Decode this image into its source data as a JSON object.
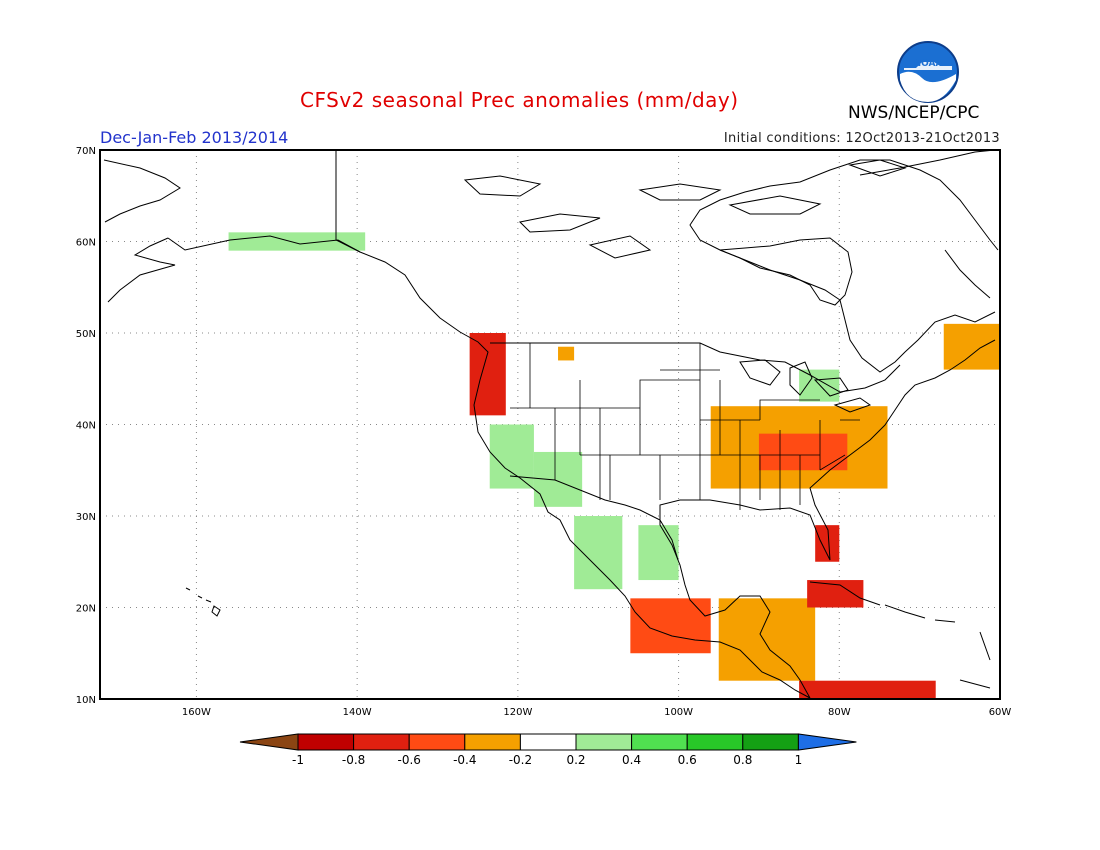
{
  "header": {
    "title": "CFSv2 seasonal Prec anomalies (mm/day)",
    "season": "Dec-Jan-Feb 2013/2014",
    "initial_conditions": "Initial conditions: 12Oct2013-21Oct2013",
    "agency": "NWS/NCEP/CPC",
    "logo_text": "NOAA"
  },
  "map": {
    "lon_range": [
      -172,
      -60
    ],
    "lat_range": [
      10,
      70
    ],
    "lon_labels": [
      "160W",
      "140W",
      "120W",
      "100W",
      "80W",
      "60W"
    ],
    "lat_labels": [
      "10N",
      "20N",
      "30N",
      "40N",
      "50N",
      "60N",
      "70N"
    ],
    "gridlines": true,
    "projection": "latlon"
  },
  "anomalies": [
    {
      "region": "Alaska south coast",
      "lon": [
        -156,
        -139
      ],
      "lat": [
        59,
        61
      ],
      "value": 0.3
    },
    {
      "region": "Pacific Northwest coast",
      "lon": [
        -126,
        -121.5
      ],
      "lat": [
        41,
        50
      ],
      "value": -0.6
    },
    {
      "region": "Northern Rockies",
      "lon": [
        -115,
        -113
      ],
      "lat": [
        47,
        48.5
      ],
      "value": -0.3
    },
    {
      "region": "California coast",
      "lon": [
        -123.5,
        -118
      ],
      "lat": [
        33,
        40
      ],
      "value": 0.3
    },
    {
      "region": "Southwest US",
      "lon": [
        -118,
        -112
      ],
      "lat": [
        31,
        37
      ],
      "value": 0.3
    },
    {
      "region": "Northwest Mexico",
      "lon": [
        -113,
        -107
      ],
      "lat": [
        22,
        30
      ],
      "value": 0.3
    },
    {
      "region": "Mexico Plateau",
      "lon": [
        -105,
        -100
      ],
      "lat": [
        23,
        29
      ],
      "value": 0.3
    },
    {
      "region": "Great Lakes",
      "lon": [
        -85,
        -80
      ],
      "lat": [
        42.5,
        46
      ],
      "value": 0.3
    },
    {
      "region": "Southern Plains to Mid-Atlantic",
      "lon": [
        -96,
        -74
      ],
      "lat": [
        33,
        42
      ],
      "value": -0.35
    },
    {
      "region": "Ohio Valley / Tennessee",
      "lon": [
        -90,
        -79
      ],
      "lat": [
        35,
        39
      ],
      "value": -0.5
    },
    {
      "region": "Florida Peninsula",
      "lon": [
        -83,
        -80
      ],
      "lat": [
        25,
        29
      ],
      "value": -0.7
    },
    {
      "region": "Southwest Mexico coast",
      "lon": [
        -106,
        -96
      ],
      "lat": [
        15,
        21
      ],
      "value": -0.5
    },
    {
      "region": "Yucatan & Central America",
      "lon": [
        -95,
        -83
      ],
      "lat": [
        12,
        21
      ],
      "value": -0.35
    },
    {
      "region": "Cuba",
      "lon": [
        -84,
        -77
      ],
      "lat": [
        20,
        23
      ],
      "value": -0.6
    },
    {
      "region": "Northern South America",
      "lon": [
        -85,
        -68
      ],
      "lat": [
        10,
        12
      ],
      "value": -0.6
    },
    {
      "region": "Nova Scotia / Newfoundland",
      "lon": [
        -67,
        -60
      ],
      "lat": [
        46,
        51
      ],
      "value": -0.3
    }
  ],
  "colorbar": {
    "labels": [
      "-1",
      "-0.8",
      "-0.6",
      "-0.4",
      "-0.2",
      "0.2",
      "0.4",
      "0.6",
      "0.8",
      "1"
    ],
    "colors": [
      "#8b4513",
      "#c00000",
      "#e02010",
      "#ff4b14",
      "#f5a000",
      "#ffffff",
      "#a0eb96",
      "#50e050",
      "#28c828",
      "#14a014",
      "#1e6ee6"
    ]
  }
}
